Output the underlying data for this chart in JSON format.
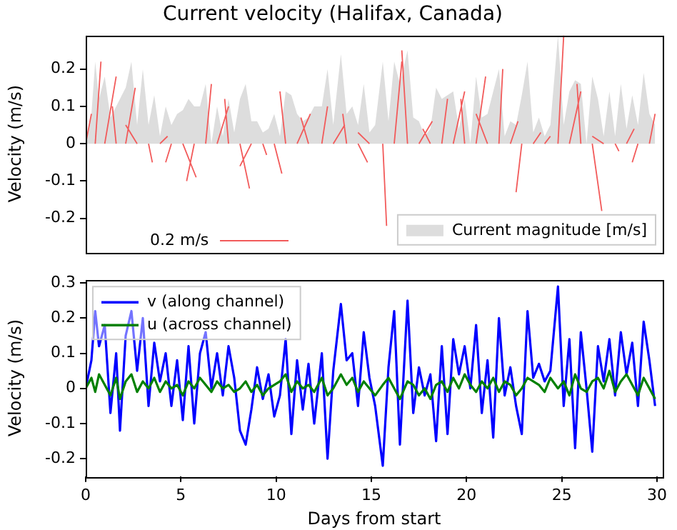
{
  "chart_data": [
    {
      "type": "line",
      "title": "Current velocity (Halifax, Canada)",
      "ylabel": "Velocity (m/s)",
      "xlim": [
        0,
        30.3
      ],
      "xticks": [
        0,
        5,
        10,
        15,
        20,
        25,
        30
      ],
      "ylim": [
        -0.29,
        0.29
      ],
      "yticks": [
        -0.2,
        -0.1,
        0.0,
        0.1,
        0.2
      ],
      "tick_labels": "y",
      "legend": "bottom right",
      "annotations": [
        "0.2 m/s"
      ],
      "series": [
        {
          "name": "Current magnitude [m/s]",
          "type": "area",
          "color": "#dddddd",
          "x": [
            0,
            0.3,
            0.5,
            0.7,
            1.0,
            1.3,
            1.6,
            1.8,
            2.1,
            2.4,
            2.7,
            3.0,
            3.3,
            3.6,
            3.9,
            4.2,
            4.5,
            4.8,
            5.1,
            5.4,
            5.7,
            6.0,
            6.3,
            6.6,
            6.9,
            7.2,
            7.5,
            7.8,
            8.1,
            8.4,
            8.7,
            9.0,
            9.3,
            9.6,
            9.9,
            10.2,
            10.5,
            10.8,
            11.1,
            11.4,
            11.7,
            12.0,
            12.4,
            12.7,
            13.0,
            13.4,
            13.7,
            14.0,
            14.3,
            14.6,
            14.9,
            15.2,
            15.6,
            15.9,
            16.2,
            16.5,
            16.9,
            17.2,
            17.5,
            17.8,
            18.1,
            18.4,
            18.7,
            19.0,
            19.3,
            19.6,
            19.9,
            20.2,
            20.5,
            20.8,
            21.1,
            21.4,
            21.7,
            22.0,
            22.3,
            22.6,
            22.9,
            23.2,
            23.5,
            23.8,
            24.1,
            24.4,
            24.8,
            25.1,
            25.4,
            25.7,
            26.0,
            26.3,
            26.6,
            26.9,
            27.2,
            27.5,
            27.8,
            28.1,
            28.4,
            28.7,
            29.0,
            29.3,
            29.6,
            29.9
          ],
          "values": [
            0.0,
            0.08,
            0.22,
            0.12,
            0.18,
            0.07,
            0.1,
            0.12,
            0.15,
            0.22,
            0.05,
            0.2,
            0.05,
            0.13,
            0.02,
            0.1,
            0.05,
            0.08,
            0.09,
            0.12,
            0.1,
            0.1,
            0.16,
            0.0,
            0.1,
            0.02,
            0.12,
            0.03,
            0.12,
            0.16,
            0.06,
            0.06,
            0.03,
            0.04,
            0.08,
            0.02,
            0.14,
            0.13,
            0.08,
            0.06,
            0.07,
            0.1,
            0.1,
            0.2,
            0.05,
            0.24,
            0.08,
            0.1,
            0.05,
            0.16,
            0.03,
            0.05,
            0.22,
            0.06,
            0.22,
            0.16,
            0.25,
            0.07,
            0.06,
            0.02,
            0.04,
            0.15,
            0.12,
            0.13,
            0.14,
            0.04,
            0.12,
            0.0,
            0.18,
            0.07,
            0.08,
            0.14,
            0.2,
            0.02,
            0.06,
            0.05,
            0.13,
            0.22,
            0.03,
            0.07,
            0.02,
            0.05,
            0.29,
            0.05,
            0.14,
            0.17,
            0.16,
            0.0,
            0.18,
            0.12,
            0.02,
            0.14,
            0.02,
            0.16,
            0.04,
            0.13,
            0.05,
            0.19,
            0.08,
            0.05
          ]
        },
        {
          "color": "#f25a5a",
          "x": [
            0,
            0.3,
            null,
            0.5,
            0.8,
            null,
            1.0,
            1.6,
            null,
            1.6,
            1.4,
            null,
            2.1,
            2.6,
            null,
            2.7,
            2.1,
            null,
            3.3,
            3.5,
            null,
            3.9,
            4.3,
            null,
            4.5,
            4.2,
            null,
            5.1,
            5.8,
            null,
            5.7,
            5.3,
            null,
            6.3,
            6.6,
            null,
            6.9,
            7.5,
            null,
            7.5,
            7.3,
            null,
            8.1,
            8.6,
            null,
            8.7,
            8.1,
            null,
            9.3,
            9.5,
            null,
            9.9,
            10.3,
            null,
            10.5,
            10.2,
            null,
            11.1,
            11.8,
            null,
            11.7,
            11.3,
            null,
            12.4,
            12.7,
            null,
            13.0,
            13.6,
            null,
            13.7,
            13.5,
            null,
            14.3,
            14.8,
            null,
            14.9,
            14.3,
            null,
            15.6,
            15.8,
            null,
            16.2,
            16.6,
            null,
            16.9,
            16.6,
            null,
            17.5,
            18.2,
            null,
            18.1,
            17.7,
            null,
            18.7,
            19.0,
            null,
            19.3,
            19.9,
            null,
            19.9,
            19.7,
            null,
            20.5,
            21.0,
            null,
            21.1,
            20.5,
            null,
            21.7,
            21.9,
            null,
            22.3,
            22.7,
            null,
            22.9,
            22.6,
            null,
            23.5,
            23.9,
            null,
            24.1,
            24.4,
            null,
            24.8,
            25.1,
            null,
            25.4,
            26.0,
            null,
            26.0,
            25.8,
            null,
            26.6,
            27.1,
            null,
            27.2,
            26.6,
            null,
            27.8,
            28.0,
            null,
            28.4,
            28.8,
            null,
            29.0,
            28.7,
            null,
            29.6,
            29.9,
            null
          ],
          "values": [
            0,
            0.08,
            null,
            0,
            0.22,
            null,
            0,
            0.18,
            null,
            0,
            0.1,
            null,
            0,
            0.15,
            null,
            0,
            0.05,
            null,
            0,
            -0.05,
            null,
            0,
            0.02,
            null,
            0,
            -0.05,
            null,
            0,
            -0.09,
            null,
            0,
            -0.1,
            null,
            0,
            0.16,
            null,
            0,
            0.1,
            null,
            0,
            0.12,
            null,
            0,
            -0.12,
            null,
            0,
            -0.06,
            null,
            0,
            -0.03,
            null,
            0,
            -0.08,
            null,
            0,
            0.14,
            null,
            0,
            0.08,
            null,
            0,
            0.07,
            null,
            0,
            0.1,
            null,
            0,
            0.05,
            null,
            0,
            0.08,
            null,
            0,
            -0.05,
            null,
            0,
            0.03,
            null,
            0,
            -0.22,
            null,
            0,
            0.22,
            null,
            0,
            0.25,
            null,
            0,
            0.06,
            null,
            0,
            0.04,
            null,
            0,
            0.12,
            null,
            0,
            0.14,
            null,
            0,
            0.12,
            null,
            0,
            0.18,
            null,
            0,
            0.08,
            null,
            0,
            0.2,
            null,
            0,
            0.06,
            null,
            0,
            -0.13,
            null,
            0,
            0.03,
            null,
            0,
            0.02,
            null,
            0,
            0.29,
            null,
            0,
            0.14,
            null,
            0,
            0.16,
            null,
            0,
            -0.18,
            null,
            0,
            0.02,
            null,
            0,
            -0.02,
            null,
            0,
            0.04,
            null,
            0,
            -0.05,
            null,
            0,
            0.08,
            null
          ]
        }
      ]
    },
    {
      "type": "line",
      "xlabel": "Days from start",
      "ylabel": "Velocity (m/s)",
      "xlim": [
        0,
        30.3
      ],
      "xticks": [
        0,
        5,
        10,
        15,
        20,
        25,
        30
      ],
      "ylim": [
        -0.25,
        0.31
      ],
      "yticks": [
        -0.2,
        -0.1,
        0.0,
        0.1,
        0.2,
        0.3
      ],
      "legend": "top left",
      "x": [
        0,
        0.3,
        0.5,
        0.7,
        1.0,
        1.3,
        1.6,
        1.8,
        2.1,
        2.4,
        2.7,
        3.0,
        3.3,
        3.6,
        3.9,
        4.2,
        4.5,
        4.8,
        5.1,
        5.4,
        5.7,
        6.0,
        6.3,
        6.6,
        6.9,
        7.2,
        7.5,
        7.8,
        8.1,
        8.4,
        8.7,
        9.0,
        9.3,
        9.6,
        9.9,
        10.2,
        10.5,
        10.8,
        11.1,
        11.4,
        11.7,
        12.0,
        12.4,
        12.7,
        13.0,
        13.4,
        13.7,
        14.0,
        14.3,
        14.6,
        14.9,
        15.2,
        15.6,
        15.9,
        16.2,
        16.5,
        16.9,
        17.2,
        17.5,
        17.8,
        18.1,
        18.4,
        18.7,
        19.0,
        19.3,
        19.6,
        19.9,
        20.2,
        20.5,
        20.8,
        21.1,
        21.4,
        21.7,
        22.0,
        22.3,
        22.6,
        22.9,
        23.2,
        23.5,
        23.8,
        24.1,
        24.4,
        24.8,
        25.1,
        25.4,
        25.7,
        26.0,
        26.3,
        26.6,
        26.9,
        27.2,
        27.5,
        27.8,
        28.1,
        28.4,
        28.7,
        29.0,
        29.3,
        29.6,
        29.9
      ],
      "series": [
        {
          "name": "v (along channel)",
          "color": "#0000ff",
          "values": [
            0.0,
            0.08,
            0.22,
            0.12,
            0.18,
            -0.07,
            0.1,
            -0.12,
            0.15,
            0.22,
            0.05,
            0.2,
            -0.05,
            0.13,
            0.02,
            0.1,
            -0.05,
            0.08,
            -0.09,
            0.12,
            -0.1,
            0.1,
            0.16,
            0.0,
            0.1,
            -0.02,
            0.12,
            0.03,
            -0.12,
            -0.16,
            -0.06,
            0.06,
            -0.03,
            0.04,
            -0.08,
            -0.02,
            0.14,
            -0.13,
            0.08,
            -0.06,
            0.07,
            -0.1,
            0.1,
            -0.2,
            0.05,
            0.24,
            0.08,
            0.1,
            -0.05,
            0.16,
            0.03,
            -0.05,
            -0.22,
            0.06,
            0.22,
            -0.16,
            0.25,
            -0.07,
            0.06,
            -0.02,
            0.04,
            -0.15,
            0.12,
            -0.13,
            0.14,
            0.04,
            0.12,
            0.0,
            0.18,
            -0.07,
            0.08,
            -0.14,
            0.2,
            -0.02,
            0.06,
            -0.05,
            -0.13,
            0.22,
            0.03,
            0.07,
            0.02,
            0.05,
            0.29,
            -0.05,
            0.14,
            -0.17,
            0.16,
            0.0,
            -0.18,
            0.12,
            0.02,
            0.14,
            -0.02,
            0.16,
            0.04,
            0.13,
            -0.05,
            0.19,
            0.08,
            -0.05
          ]
        },
        {
          "name": "u (across channel)",
          "color": "#008000",
          "values": [
            0.0,
            0.03,
            -0.01,
            0.04,
            0.01,
            -0.02,
            0.03,
            -0.03,
            0.02,
            0.04,
            -0.01,
            0.02,
            0.0,
            0.03,
            -0.01,
            0.02,
            0.0,
            0.01,
            -0.02,
            0.02,
            0.0,
            0.03,
            0.01,
            -0.01,
            0.02,
            0.0,
            0.01,
            -0.01,
            0.0,
            0.02,
            -0.01,
            0.01,
            -0.02,
            0.0,
            0.01,
            0.02,
            0.04,
            -0.01,
            0.02,
            0.0,
            0.01,
            -0.01,
            0.03,
            -0.02,
            0.0,
            0.04,
            0.01,
            0.03,
            -0.01,
            0.02,
            0.0,
            -0.02,
            0.01,
            0.03,
            0.0,
            -0.03,
            0.02,
            0.01,
            -0.02,
            0.0,
            -0.03,
            0.01,
            0.02,
            -0.01,
            0.03,
            0.0,
            0.04,
            0.01,
            -0.01,
            0.02,
            0.0,
            0.03,
            -0.01,
            0.02,
            0.01,
            -0.02,
            0.0,
            0.03,
            0.02,
            0.01,
            -0.01,
            0.03,
            0.0,
            0.02,
            -0.02,
            0.04,
            0.0,
            -0.01,
            0.02,
            0.03,
            0.0,
            0.05,
            -0.01,
            0.02,
            0.04,
            0.01,
            -0.02,
            0.03,
            0.0,
            -0.03
          ]
        }
      ]
    }
  ]
}
